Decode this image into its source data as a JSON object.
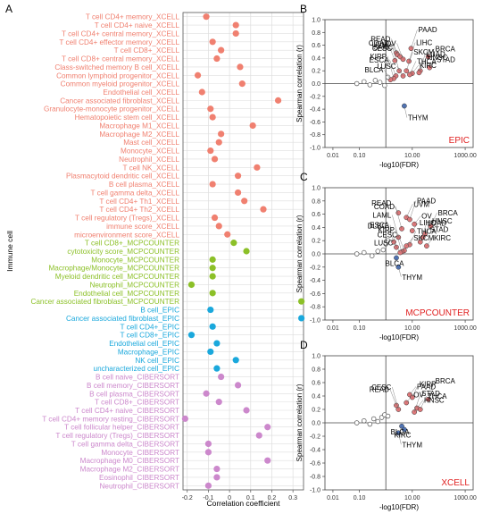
{
  "chart_data": [
    {
      "type": "dot",
      "panel_label": "A",
      "xlabel": "Correlation coefficient",
      "ylabel": "Immune cell",
      "xlim": [
        -0.22,
        0.35
      ],
      "xticks": [
        -0.2,
        -0.1,
        0.0,
        0.1,
        0.2,
        0.3
      ],
      "xtick_labels": [
        "-0.2",
        "-0.1",
        "0",
        "0.1",
        "0.2",
        "0.3"
      ],
      "grid": true,
      "groups": [
        {
          "name": "XCELL",
          "color": "#f08070"
        },
        {
          "name": "MCPCOUNTER",
          "color": "#8cc028"
        },
        {
          "name": "EPIC",
          "color": "#1aa8dc"
        },
        {
          "name": "CIBERSORT",
          "color": "#cc88cc"
        }
      ],
      "points": [
        {
          "label": "T cell CD4+ memory_XCELL",
          "group": 0,
          "value": -0.11
        },
        {
          "label": "T cell CD4+ naive_XCELL",
          "group": 0,
          "value": 0.03
        },
        {
          "label": "T cell CD4+ central memory_XCELL",
          "group": 0,
          "value": 0.03
        },
        {
          "label": "T cell CD4+ effector memory_XCELL",
          "group": 0,
          "value": -0.08
        },
        {
          "label": "T cell CD8+_XCELL",
          "group": 0,
          "value": -0.04
        },
        {
          "label": "T cell CD8+ central memory_XCELL",
          "group": 0,
          "value": -0.06
        },
        {
          "label": "Class-switched memory B cell_XCELL",
          "group": 0,
          "value": 0.05
        },
        {
          "label": "Common lymphoid progenitor_XCELL",
          "group": 0,
          "value": -0.15
        },
        {
          "label": "Common myeloid progenitor_XCELL",
          "group": 0,
          "value": 0.06
        },
        {
          "label": "Endothelial cell_XCELL",
          "group": 0,
          "value": -0.13
        },
        {
          "label": "Cancer associated fibroblast_XCELL",
          "group": 0,
          "value": 0.23
        },
        {
          "label": "Granulocyte-monocyte progenitor_XCELL",
          "group": 0,
          "value": -0.09
        },
        {
          "label": "Hematopoietic stem cell_XCELL",
          "group": 0,
          "value": -0.08
        },
        {
          "label": "Macrophage M1_XCELL",
          "group": 0,
          "value": 0.11
        },
        {
          "label": "Macrophage M2_XCELL",
          "group": 0,
          "value": -0.04
        },
        {
          "label": "Mast cell_XCELL",
          "group": 0,
          "value": -0.05
        },
        {
          "label": "Monocyte_XCELL",
          "group": 0,
          "value": -0.09
        },
        {
          "label": "Neutrophil_XCELL",
          "group": 0,
          "value": -0.07
        },
        {
          "label": "T cell NK_XCELL",
          "group": 0,
          "value": 0.13
        },
        {
          "label": "Plasmacytoid dendritic cell_XCELL",
          "group": 0,
          "value": 0.04
        },
        {
          "label": "B cell plasma_XCELL",
          "group": 0,
          "value": -0.08
        },
        {
          "label": "T cell gamma delta_XCELL",
          "group": 0,
          "value": 0.04
        },
        {
          "label": "T cell CD4+ Th1_XCELL",
          "group": 0,
          "value": 0.07
        },
        {
          "label": "T cell CD4+ Th2_XCELL",
          "group": 0,
          "value": 0.16
        },
        {
          "label": "T cell regulatory (Tregs)_XCELL",
          "group": 0,
          "value": -0.07
        },
        {
          "label": "immune score_XCELL",
          "group": 0,
          "value": -0.05
        },
        {
          "label": "microenvironment score_XCELL",
          "group": 0,
          "value": -0.01
        },
        {
          "label": "T cell CD8+_MCPCOUNTER",
          "group": 1,
          "value": 0.02
        },
        {
          "label": "cytotoxicity score_MCPCOUNTER",
          "group": 1,
          "value": 0.08
        },
        {
          "label": "Monocyte_MCPCOUNTER",
          "group": 1,
          "value": -0.08
        },
        {
          "label": "Macrophage/Monocyte_MCPCOUNTER",
          "group": 1,
          "value": -0.08
        },
        {
          "label": "Myeloid dendritic cell_MCPCOUNTER",
          "group": 1,
          "value": -0.08
        },
        {
          "label": "Neutrophil_MCPCOUNTER",
          "group": 1,
          "value": -0.18
        },
        {
          "label": "Endothelial cell_MCPCOUNTER",
          "group": 1,
          "value": -0.08
        },
        {
          "label": "Cancer associated fibroblast_MCPCOUNTER",
          "group": 1,
          "value": 0.34
        },
        {
          "label": "B cell_EPIC",
          "group": 2,
          "value": -0.09
        },
        {
          "label": "Cancer associated fibroblast_EPIC",
          "group": 2,
          "value": 0.34
        },
        {
          "label": "T cell CD4+_EPIC",
          "group": 2,
          "value": -0.08
        },
        {
          "label": "T cell CD8+_EPIC",
          "group": 2,
          "value": -0.18
        },
        {
          "label": "Endothelial cell_EPIC",
          "group": 2,
          "value": -0.06
        },
        {
          "label": "Macrophage_EPIC",
          "group": 2,
          "value": -0.09
        },
        {
          "label": "NK cell_EPIC",
          "group": 2,
          "value": 0.03
        },
        {
          "label": "uncharacterized cell_EPIC",
          "group": 2,
          "value": -0.06
        },
        {
          "label": "B cell naive_CIBERSORT",
          "group": 3,
          "value": -0.04
        },
        {
          "label": "B cell memory_CIBERSORT",
          "group": 3,
          "value": 0.04
        },
        {
          "label": "B cell plasma_CIBERSORT",
          "group": 3,
          "value": -0.11
        },
        {
          "label": "T cell CD8+_CIBERSORT",
          "group": 3,
          "value": -0.05
        },
        {
          "label": "T cell CD4+ naive_CIBERSORT",
          "group": 3,
          "value": 0.08
        },
        {
          "label": "T cell CD4+ memory resting_CIBERSORT",
          "group": 3,
          "value": -0.21
        },
        {
          "label": "T cell follicular helper_CIBERSORT",
          "group": 3,
          "value": 0.18
        },
        {
          "label": "T cell regulatory (Tregs)_CIBERSORT",
          "group": 3,
          "value": 0.14
        },
        {
          "label": "T cell gamma delta_CIBERSORT",
          "group": 3,
          "value": -0.1
        },
        {
          "label": "Monocyte_CIBERSORT",
          "group": 3,
          "value": -0.1
        },
        {
          "label": "Macrophage M0_CIBERSORT",
          "group": 3,
          "value": 0.18
        },
        {
          "label": "Macrophage M2_CIBERSORT",
          "group": 3,
          "value": -0.06
        },
        {
          "label": "Eosinophil_CIBERSORT",
          "group": 3,
          "value": -0.06
        },
        {
          "label": "Neutrophil_CIBERSORT",
          "group": 3,
          "value": -0.1
        }
      ]
    },
    {
      "type": "scatter",
      "panel_label": "B",
      "tag": "EPIC",
      "tag_color": "#e02020",
      "xlabel": "-log10(FDR)",
      "ylabel": "Spearman correlation (r)",
      "xscale": "log",
      "xlim": [
        0.005,
        2000
      ],
      "ylim": [
        -1.0,
        1.0
      ],
      "xticks": [
        0.01,
        0.1,
        10.0,
        1000.0
      ],
      "xtick_labels": [
        "0.01",
        "0.10",
        "10.00",
        "1000.00"
      ],
      "yticks": [
        -1.0,
        -0.8,
        -0.6,
        -0.4,
        -0.2,
        0.0,
        0.2,
        0.4,
        0.6,
        0.8,
        1.0
      ],
      "ytick_labels": [
        "-1.0",
        "-0.8",
        "-0.6",
        "-0.4",
        "-0.2",
        "0.0",
        "0.2",
        "0.4",
        "0.6",
        "0.8",
        "1.0"
      ],
      "points": [
        {
          "label": "COAD",
          "x": 2.5,
          "y": 0.48,
          "kind": "pos"
        },
        {
          "label": "READ",
          "x": 2.8,
          "y": 0.45,
          "kind": "pos"
        },
        {
          "label": "PAAD",
          "x": 9,
          "y": 0.55,
          "kind": "pos"
        },
        {
          "label": "SARC",
          "x": 3.5,
          "y": 0.42,
          "kind": "pos"
        },
        {
          "label": "OV",
          "x": 4.5,
          "y": 0.38,
          "kind": "pos"
        },
        {
          "label": "LIHC",
          "x": 7.5,
          "y": 0.35,
          "kind": "pos"
        },
        {
          "label": "BRCA",
          "x": 40,
          "y": 0.42,
          "kind": "pos"
        },
        {
          "label": "UVM",
          "x": 2.2,
          "y": 0.36,
          "kind": "pos"
        },
        {
          "label": "CESC",
          "x": 3.2,
          "y": 0.2,
          "kind": "pos"
        },
        {
          "label": "STAD",
          "x": 45,
          "y": 0.25,
          "kind": "pos"
        },
        {
          "label": "HNSC",
          "x": 20,
          "y": 0.2,
          "kind": "pos"
        },
        {
          "label": "LUAD",
          "x": 18,
          "y": 0.17,
          "kind": "pos"
        },
        {
          "label": "KIRC",
          "x": 10,
          "y": 0.16,
          "kind": "pos"
        },
        {
          "label": "ESCA",
          "x": 2.4,
          "y": 0.12,
          "kind": "pos"
        },
        {
          "label": "KIRP",
          "x": 2.0,
          "y": 0.08,
          "kind": "pos"
        },
        {
          "label": "LUSC",
          "x": 4.5,
          "y": 0.12,
          "kind": "pos"
        },
        {
          "label": "THCA",
          "x": 8,
          "y": 0.14,
          "kind": "pos"
        },
        {
          "label": "SKCM",
          "x": 6,
          "y": 0.2,
          "kind": "pos"
        },
        {
          "label": "BLCA",
          "x": 1.5,
          "y": 0.06,
          "kind": "pos"
        },
        {
          "label": "THYM",
          "x": 5,
          "y": -0.35,
          "kind": "neg"
        },
        {
          "label": "",
          "x": 0.08,
          "y": 0.0,
          "kind": "ns"
        },
        {
          "label": "",
          "x": 0.15,
          "y": 0.03,
          "kind": "ns"
        },
        {
          "label": "",
          "x": 0.25,
          "y": -0.02,
          "kind": "ns"
        },
        {
          "label": "",
          "x": 0.4,
          "y": 0.05,
          "kind": "ns"
        },
        {
          "label": "",
          "x": 0.6,
          "y": 0.02,
          "kind": "ns"
        },
        {
          "label": "",
          "x": 0.9,
          "y": -0.03,
          "kind": "ns"
        },
        {
          "label": "",
          "x": 1.2,
          "y": 0.1,
          "kind": "ns"
        }
      ]
    },
    {
      "type": "scatter",
      "panel_label": "C",
      "tag": "MCPCOUNTER",
      "tag_color": "#e02020",
      "xlabel": "-log10(FDR)",
      "ylabel": "Spearman correlation (r)",
      "xscale": "log",
      "xlim": [
        0.005,
        2000
      ],
      "ylim": [
        -1.0,
        1.0
      ],
      "xticks": [
        0.01,
        0.1,
        10.0,
        1000.0
      ],
      "xtick_labels": [
        "0.01",
        "0.10",
        "10.00",
        "1000.00"
      ],
      "yticks": [
        -1.0,
        -0.8,
        -0.6,
        -0.4,
        -0.2,
        0.0,
        0.2,
        0.4,
        0.6,
        0.8,
        1.0
      ],
      "ytick_labels": [
        "-1.0",
        "-0.8",
        "-0.6",
        "-0.4",
        "-0.2",
        "0.0",
        "0.2",
        "0.4",
        "0.6",
        "0.8",
        "1.0"
      ],
      "points": [
        {
          "label": "READ",
          "x": 3,
          "y": 0.62,
          "kind": "pos"
        },
        {
          "label": "UVM",
          "x": 6,
          "y": 0.55,
          "kind": "pos"
        },
        {
          "label": "PAAD",
          "x": 8,
          "y": 0.52,
          "kind": "pos"
        },
        {
          "label": "OV",
          "x": 12,
          "y": 0.45,
          "kind": "pos"
        },
        {
          "label": "BRCA",
          "x": 50,
          "y": 0.42,
          "kind": "pos"
        },
        {
          "label": "COAD",
          "x": 4,
          "y": 0.38,
          "kind": "pos"
        },
        {
          "label": "LIHC",
          "x": 10,
          "y": 0.35,
          "kind": "pos"
        },
        {
          "label": "HNSC",
          "x": 30,
          "y": 0.3,
          "kind": "pos"
        },
        {
          "label": "LAML",
          "x": 3,
          "y": 0.25,
          "kind": "pos"
        },
        {
          "label": "STAD",
          "x": 25,
          "y": 0.25,
          "kind": "pos"
        },
        {
          "label": "DLBC",
          "x": 2,
          "y": 0.18,
          "kind": "pos"
        },
        {
          "label": "LUAD",
          "x": 20,
          "y": 0.18,
          "kind": "pos"
        },
        {
          "label": "KIRC",
          "x": 35,
          "y": 0.12,
          "kind": "pos"
        },
        {
          "label": "THCA",
          "x": 8,
          "y": 0.14,
          "kind": "pos"
        },
        {
          "label": "ESCA",
          "x": 2.5,
          "y": 0.1,
          "kind": "pos"
        },
        {
          "label": "SKCM",
          "x": 6,
          "y": 0.12,
          "kind": "pos"
        },
        {
          "label": "CESC",
          "x": 5,
          "y": 0.05,
          "kind": "pos"
        },
        {
          "label": "KIRP",
          "x": 4,
          "y": 0.03,
          "kind": "pos"
        },
        {
          "label": "LUSC",
          "x": 3.5,
          "y": 0.02,
          "kind": "pos"
        },
        {
          "label": "BLCA",
          "x": 2.5,
          "y": -0.06,
          "kind": "neg"
        },
        {
          "label": "THYM",
          "x": 3,
          "y": -0.2,
          "kind": "neg"
        },
        {
          "label": "",
          "x": 0.08,
          "y": 0.0,
          "kind": "ns"
        },
        {
          "label": "",
          "x": 0.15,
          "y": 0.02,
          "kind": "ns"
        },
        {
          "label": "",
          "x": 0.3,
          "y": -0.03,
          "kind": "ns"
        },
        {
          "label": "",
          "x": 0.5,
          "y": 0.04,
          "kind": "ns"
        },
        {
          "label": "",
          "x": 0.8,
          "y": 0.06,
          "kind": "ns"
        },
        {
          "label": "",
          "x": 1.0,
          "y": 0.15,
          "kind": "ns"
        },
        {
          "label": "",
          "x": 1.2,
          "y": 0.2,
          "kind": "ns"
        }
      ]
    },
    {
      "type": "scatter",
      "panel_label": "D",
      "tag": "XCELL",
      "tag_color": "#e02020",
      "xlabel": "-log10(FDR)",
      "ylabel": "Spearman correlation (r)",
      "xscale": "log",
      "xlim": [
        0.005,
        2000
      ],
      "ylim": [
        -1.0,
        1.0
      ],
      "xticks": [
        0.01,
        0.1,
        10.0,
        1000.0
      ],
      "xtick_labels": [
        "0.01",
        "0.10",
        "10.00",
        "1000.00"
      ],
      "yticks": [
        -1.0,
        -0.8,
        -0.6,
        -0.4,
        -0.2,
        0.0,
        0.2,
        0.4,
        0.6,
        0.8,
        1.0
      ],
      "ytick_labels": [
        "-1.0",
        "-0.8",
        "-0.6",
        "-0.4",
        "-0.2",
        "0.0",
        "0.2",
        "0.4",
        "0.6",
        "0.8",
        "1.0"
      ],
      "points": [
        {
          "label": "PAAD",
          "x": 8,
          "y": 0.42,
          "kind": "pos"
        },
        {
          "label": "KIRP",
          "x": 10,
          "y": 0.38,
          "kind": "pos"
        },
        {
          "label": "BRCA",
          "x": 40,
          "y": 0.35,
          "kind": "pos"
        },
        {
          "label": "OV",
          "x": 6,
          "y": 0.3,
          "kind": "pos"
        },
        {
          "label": "READ",
          "x": 2.5,
          "y": 0.26,
          "kind": "pos"
        },
        {
          "label": "CESC",
          "x": 3,
          "y": 0.2,
          "kind": "pos"
        },
        {
          "label": "HNSC",
          "x": 15,
          "y": 0.22,
          "kind": "pos"
        },
        {
          "label": "THCA",
          "x": 20,
          "y": 0.2,
          "kind": "pos"
        },
        {
          "label": "STAD",
          "x": 12,
          "y": 0.16,
          "kind": "pos"
        },
        {
          "label": "BLCA",
          "x": 4,
          "y": -0.05,
          "kind": "neg"
        },
        {
          "label": "KIRC",
          "x": 5,
          "y": -0.1,
          "kind": "neg"
        },
        {
          "label": "THYM",
          "x": 3,
          "y": -0.15,
          "kind": "neg"
        },
        {
          "label": "",
          "x": 0.08,
          "y": 0.0,
          "kind": "ns"
        },
        {
          "label": "",
          "x": 0.15,
          "y": 0.03,
          "kind": "ns"
        },
        {
          "label": "",
          "x": 0.25,
          "y": -0.02,
          "kind": "ns"
        },
        {
          "label": "",
          "x": 0.35,
          "y": 0.06,
          "kind": "ns"
        },
        {
          "label": "",
          "x": 0.5,
          "y": 0.02,
          "kind": "ns"
        },
        {
          "label": "",
          "x": 0.7,
          "y": 0.08,
          "kind": "ns"
        },
        {
          "label": "",
          "x": 0.9,
          "y": 0.12,
          "kind": "ns"
        },
        {
          "label": "",
          "x": 1.2,
          "y": 0.1,
          "kind": "ns"
        }
      ]
    }
  ],
  "colors": {
    "axis": "#333333",
    "grid": "#dddddd",
    "positive_point": "#e0787a",
    "negative_point": "#4f74b8",
    "ns_point_stroke": "#555555"
  }
}
